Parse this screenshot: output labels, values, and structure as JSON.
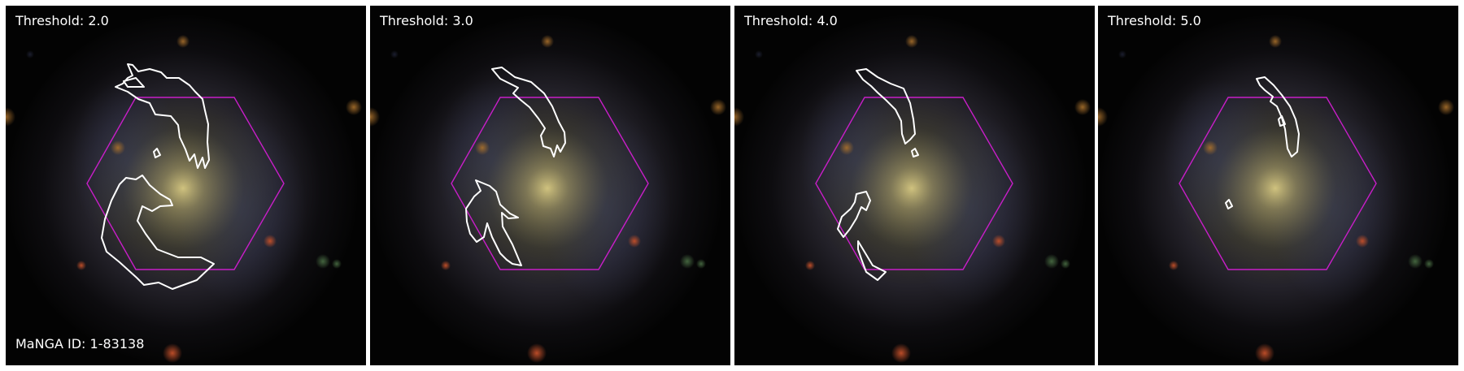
{
  "figure": {
    "id_label": "MaNGA ID: 1-83138",
    "outline_color": "#ffffff",
    "hexagon_color": "#c81ec8",
    "panels": [
      {
        "label": "Threshold: 2.0"
      },
      {
        "label": "Threshold: 3.0"
      },
      {
        "label": "Threshold: 4.0"
      },
      {
        "label": "Threshold: 5.0"
      }
    ]
  }
}
